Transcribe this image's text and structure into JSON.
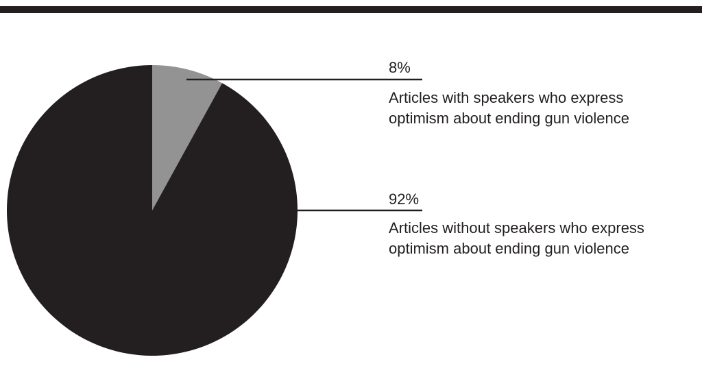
{
  "colors": {
    "rule": "#231f20",
    "dark_slice": "#231f20",
    "light_slice": "#939393",
    "leader": "#231f20",
    "text": "#231f20"
  },
  "chart_data": {
    "type": "pie",
    "title": "",
    "start_angle_deg": 0,
    "direction": "clockwise",
    "slices": [
      {
        "value": 8,
        "label": "8%",
        "description_lines": [
          "Articles with speakers who express",
          "optimism about ending gun violence"
        ],
        "color": "#939393"
      },
      {
        "value": 92,
        "label": "92%",
        "description_lines": [
          "Articles without speakers who express",
          "optimism about ending gun violence"
        ],
        "color": "#231f20"
      }
    ]
  }
}
